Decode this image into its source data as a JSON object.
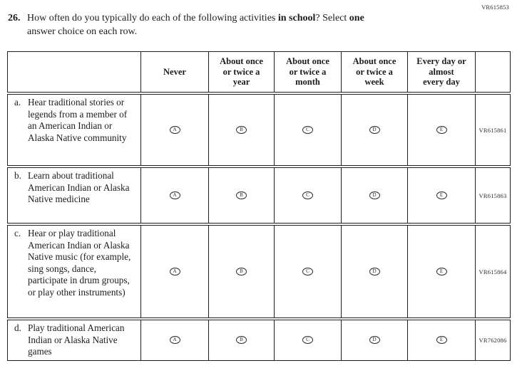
{
  "page": {
    "top_code": "VR615853"
  },
  "question": {
    "number": "26.",
    "part1": "How often do you typically do each of the following activities ",
    "bold1": "in school",
    "part2": "? Select ",
    "bold2": "one",
    "part3": "answer choice on each row."
  },
  "table": {
    "headers": [
      "",
      "Never",
      "About once\nor twice a\nyear",
      "About once\nor twice a\nmonth",
      "About once\nor twice a\nweek",
      "Every day or\nalmost\nevery day",
      ""
    ],
    "options": [
      "A",
      "B",
      "C",
      "D",
      "E"
    ],
    "rows": [
      {
        "letter": "a.",
        "label": "Hear traditional stories or legends from a member of an American Indian or Alaska Native community",
        "code": "VR615861"
      },
      {
        "letter": "b.",
        "label": "Learn about traditional American Indian or Alaska Native medicine",
        "code": "VR615863"
      },
      {
        "letter": "c.",
        "label": "Hear or play traditional American Indian or Alaska Native music (for example, sing songs, dance, participate in drum groups, or play other instruments)",
        "code": "VR615864"
      },
      {
        "letter": "d.",
        "label": "Play traditional American Indian or Alaska Native games",
        "code": "VR762086"
      }
    ]
  }
}
